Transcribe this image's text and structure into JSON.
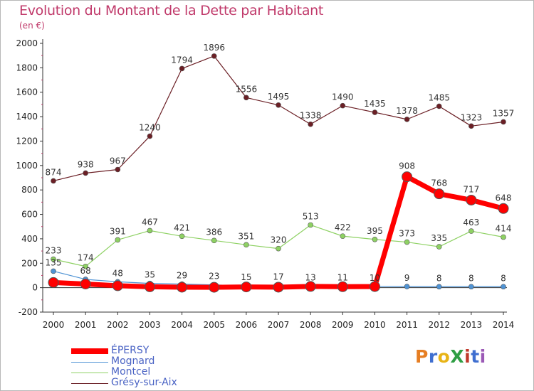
{
  "header": {
    "title": "Evolution du Montant de la Dette par Habitant",
    "unit": "(en €)"
  },
  "logo": {
    "text": "ProXiti",
    "colors": [
      "#e67e22",
      "#3f6fd0",
      "#e8b417",
      "#2f9e44",
      "#c0392b",
      "#3f6fd0",
      "#9b59b6"
    ]
  },
  "colors": {
    "title": "#c0396a",
    "legend_text": "#4a63c4",
    "axis": "#333333",
    "grid_tick": "#c0396a"
  },
  "chart_data": {
    "type": "line",
    "categories": [
      "2000",
      "2001",
      "2002",
      "2003",
      "2004",
      "2005",
      "2006",
      "2007",
      "2008",
      "2009",
      "2010",
      "2011",
      "2012",
      "2013",
      "2014"
    ],
    "ylim": [
      -200,
      2000
    ],
    "yticks": [
      -200,
      0,
      200,
      400,
      600,
      800,
      1000,
      1200,
      1400,
      1600,
      1800,
      2000
    ],
    "legend_position": "bottom-left",
    "series": [
      {
        "name": "Grésy-sur-Aix",
        "color": "#6b1f25",
        "width": 1.2,
        "marker": 3.5,
        "values": [
          874,
          938,
          967,
          1240,
          1794,
          1896,
          1556,
          1495,
          1338,
          1490,
          1435,
          1378,
          1485,
          1323,
          1357
        ],
        "labels": [
          "874",
          "938",
          "967",
          "1240",
          "1794",
          "1896",
          "1556",
          "1495",
          "1338",
          "1490",
          "1435",
          "1378",
          "1485",
          "1323",
          "1357"
        ]
      },
      {
        "name": "Montcel",
        "color": "#8ed163",
        "width": 1.2,
        "marker": 3.5,
        "values": [
          233,
          174,
          391,
          467,
          421,
          386,
          351,
          320,
          513,
          422,
          395,
          373,
          335,
          463,
          414
        ],
        "labels": [
          "233",
          "174",
          "391",
          "467",
          "421",
          "386",
          "351",
          "320",
          "513",
          "422",
          "395",
          "373",
          "335",
          "463",
          "414"
        ]
      },
      {
        "name": "Mognard",
        "color": "#4f93d4",
        "width": 1.2,
        "marker": 3.5,
        "values": [
          135,
          68,
          48,
          35,
          29,
          23,
          15,
          17,
          13,
          11,
          10,
          9,
          8,
          8,
          8
        ],
        "labels": [
          "135",
          "68",
          "48",
          "35",
          "29",
          "23",
          "15",
          "17",
          "13",
          "11",
          "10",
          "9",
          "8",
          "8",
          "8"
        ]
      },
      {
        "name": "ÉPERSY",
        "color": "#ff0000",
        "width": 7,
        "marker": 7,
        "values": [
          42,
          30,
          16,
          7,
          4,
          3,
          6,
          4,
          10,
          8,
          9,
          908,
          768,
          717,
          648
        ],
        "labels": [
          "42",
          "30",
          "16",
          "7",
          "4",
          "3",
          "6",
          "4",
          "10",
          "8",
          "9",
          "908",
          "768",
          "717",
          "648"
        ]
      }
    ]
  },
  "legend": [
    {
      "name": "ÉPERSY",
      "color": "#ff0000",
      "thickness": 7
    },
    {
      "name": "Mognard",
      "color": "#4f93d4",
      "thickness": 1
    },
    {
      "name": "Montcel",
      "color": "#8ed163",
      "thickness": 1
    },
    {
      "name": "Grésy-sur-Aix",
      "color": "#6b1f25",
      "thickness": 1
    }
  ]
}
